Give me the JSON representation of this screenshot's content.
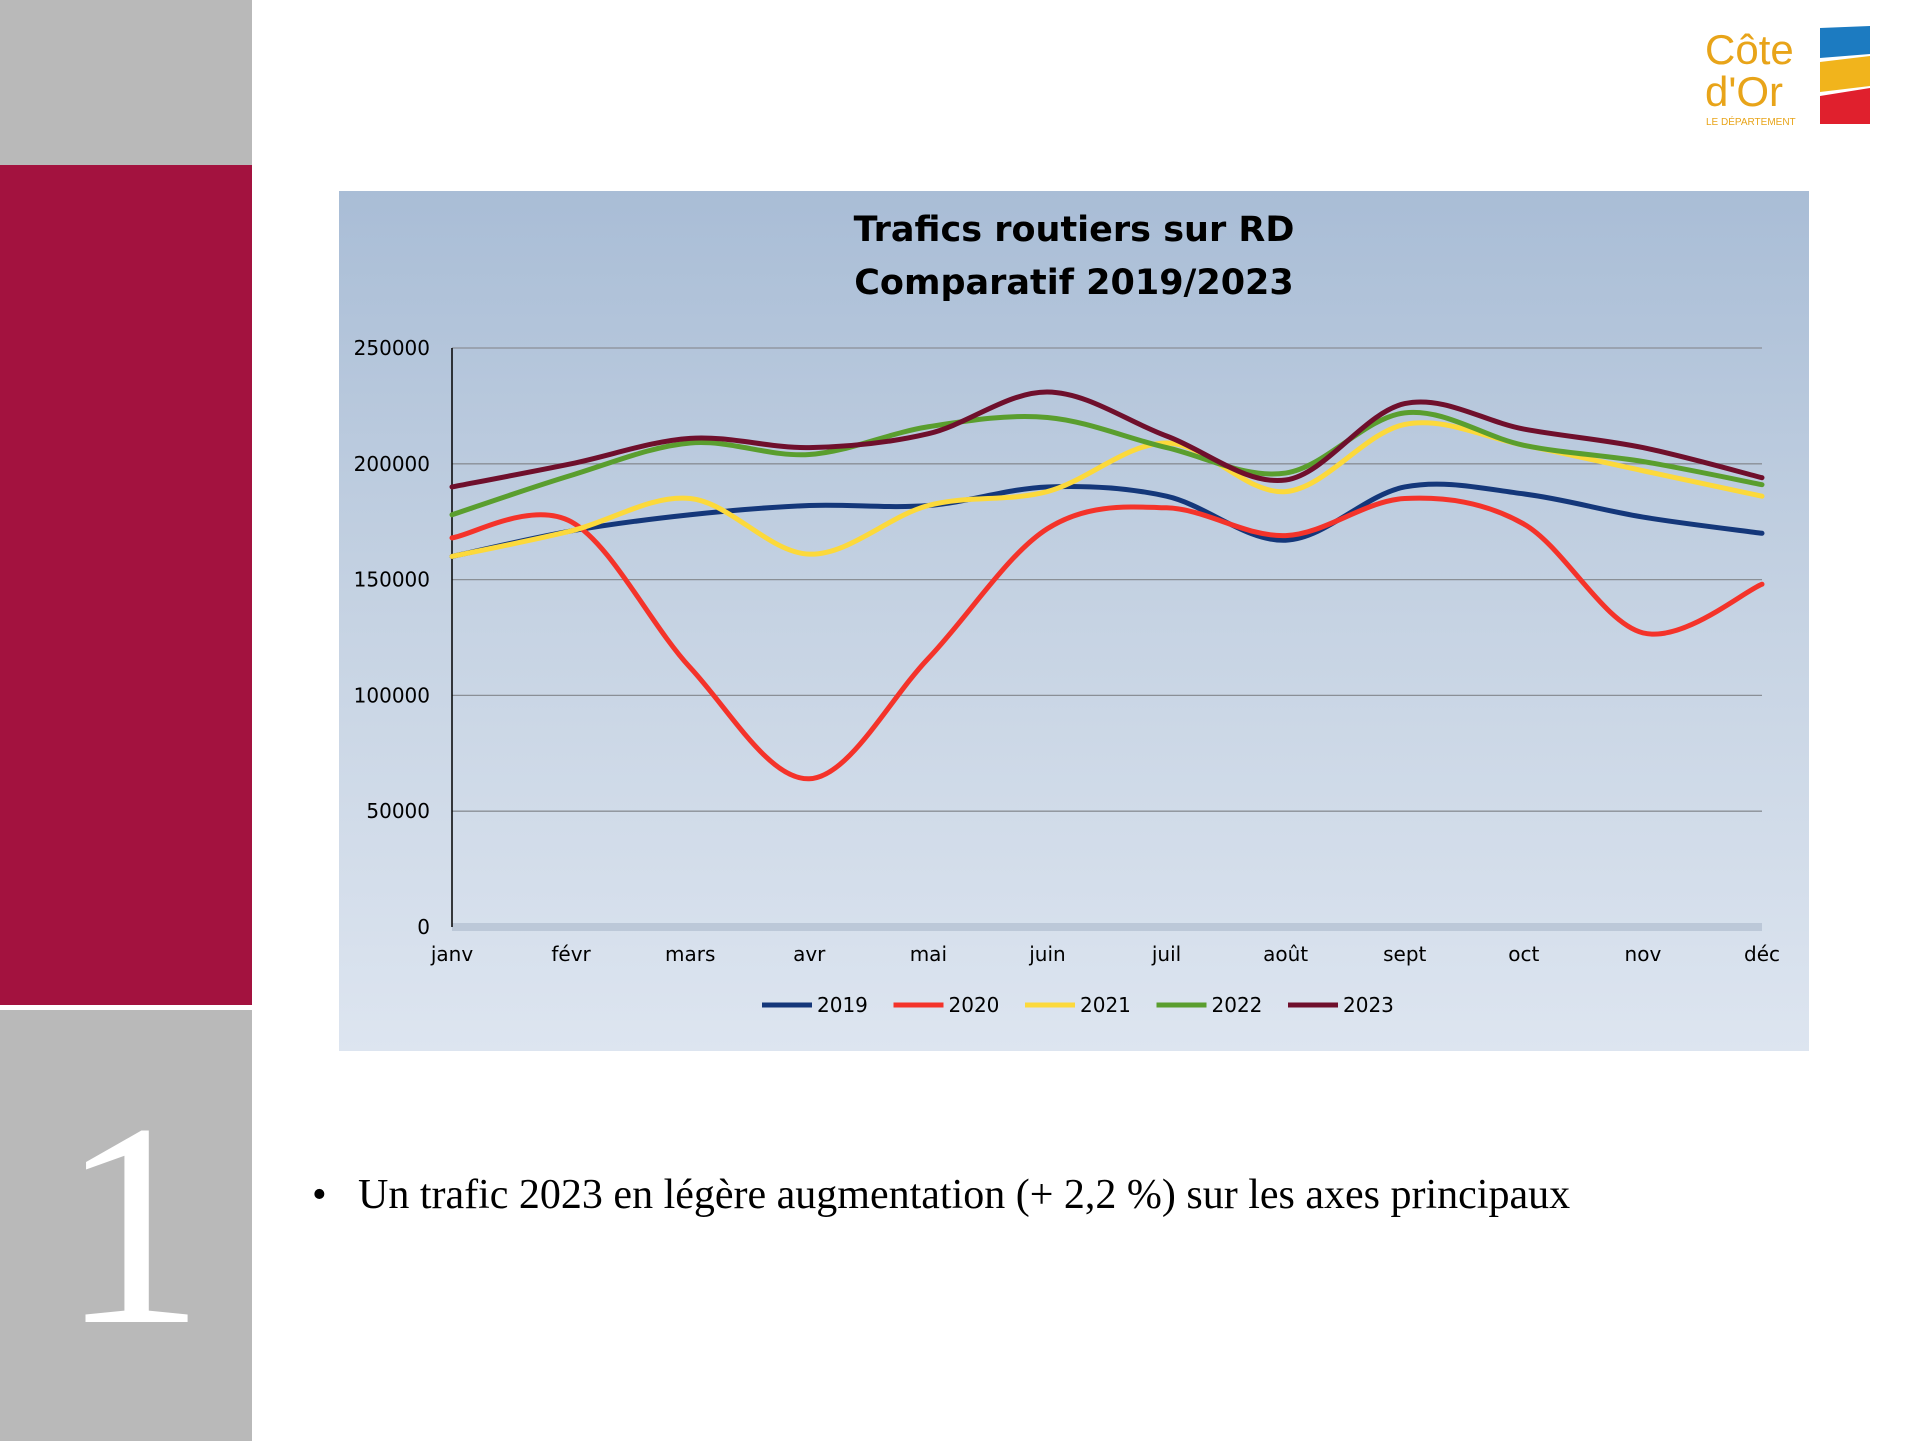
{
  "slide": {
    "number": "1",
    "bullet_text": "Un trafic 2023 en légère augmentation (+ 2,2 %) sur les axes principaux",
    "colors": {
      "sidebar_gray": "#b9b9b9",
      "sidebar_red": "#a3123f"
    }
  },
  "logo": {
    "line1": "Côte",
    "line2": "d'Or",
    "sub": "LE DÉPARTEMENT",
    "colors": {
      "text": "#e8a419",
      "blue": "#1c7bc1",
      "yellow": "#f1b41c",
      "red": "#e0202d"
    }
  },
  "chart_data": {
    "type": "line",
    "title": [
      "Trafics routiers sur RD",
      "Comparatif 2019/2023"
    ],
    "categories": [
      "janv",
      "févr",
      "mars",
      "avr",
      "mai",
      "juin",
      "juil",
      "août",
      "sept",
      "oct",
      "nov",
      "déc"
    ],
    "ylim": [
      0,
      250000
    ],
    "yticks": [
      "0",
      "50000",
      "100000",
      "150000",
      "200000",
      "250000"
    ],
    "ytick_values": [
      0,
      50000,
      100000,
      150000,
      200000,
      250000
    ],
    "grid": true,
    "legend": "bottom",
    "series": [
      {
        "name": "2019",
        "color": "#14377a",
        "values": [
          160000,
          171000,
          178000,
          182000,
          182000,
          190000,
          186000,
          167000,
          190000,
          187000,
          177000,
          170000
        ]
      },
      {
        "name": "2020",
        "color": "#f4332a",
        "values": [
          168000,
          175000,
          112000,
          64000,
          116000,
          172000,
          181000,
          169000,
          185000,
          174000,
          127000,
          148000
        ]
      },
      {
        "name": "2021",
        "color": "#fcd93b",
        "values": [
          160000,
          171000,
          185000,
          161000,
          182000,
          188000,
          209000,
          188000,
          217000,
          208000,
          197000,
          186000
        ]
      },
      {
        "name": "2022",
        "color": "#5a9e2e",
        "values": [
          178000,
          195000,
          209000,
          204000,
          216000,
          220000,
          207000,
          196000,
          222000,
          208000,
          201000,
          191000
        ]
      },
      {
        "name": "2023",
        "color": "#6f0f2c",
        "values": [
          190000,
          200000,
          211000,
          207000,
          213000,
          231000,
          212000,
          193000,
          226000,
          215000,
          207000,
          194000
        ]
      }
    ]
  }
}
